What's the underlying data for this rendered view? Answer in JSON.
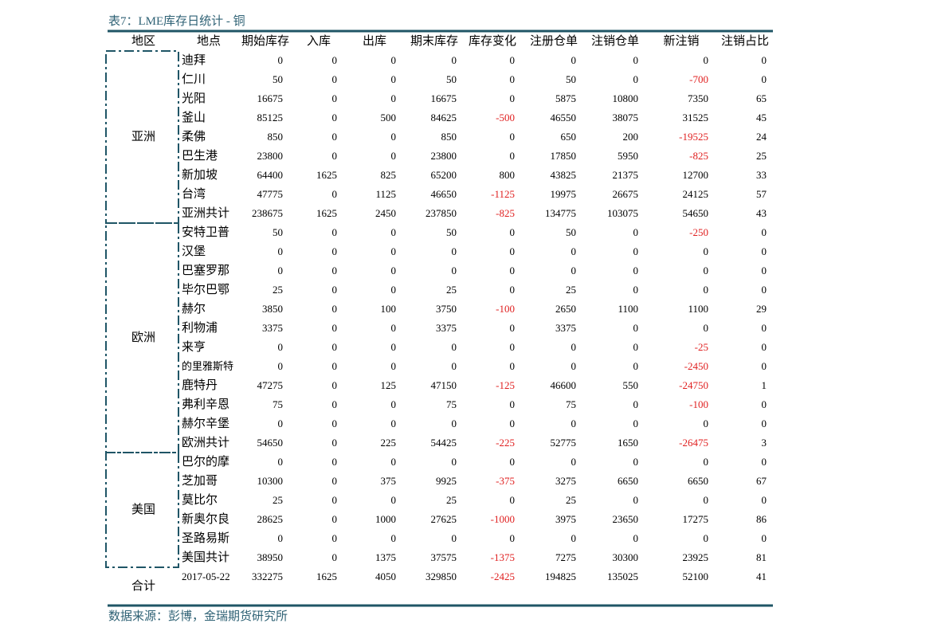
{
  "title": "表7：LME库存日统计 - 铜",
  "header": [
    "地区",
    "地点",
    "期始库存",
    "入库",
    "出库",
    "期末库存",
    "库存变化",
    "注册仓单",
    "注销仓单",
    "新注销",
    "注销占比"
  ],
  "groups": [
    {
      "region": "亚洲",
      "rows": [
        [
          "迪拜",
          0,
          0,
          0,
          0,
          0,
          0,
          0,
          0,
          0
        ],
        [
          "仁川",
          50,
          0,
          0,
          50,
          0,
          50,
          0,
          -700,
          0
        ],
        [
          "光阳",
          16675,
          0,
          0,
          16675,
          0,
          5875,
          10800,
          7350,
          65
        ],
        [
          "釜山",
          85125,
          0,
          500,
          84625,
          -500,
          46550,
          38075,
          31525,
          45
        ],
        [
          "柔佛",
          850,
          0,
          0,
          850,
          0,
          650,
          200,
          -19525,
          24
        ],
        [
          "巴生港",
          23800,
          0,
          0,
          23800,
          0,
          17850,
          5950,
          -825,
          25
        ],
        [
          "新加坡",
          64400,
          1625,
          825,
          65200,
          800,
          43825,
          21375,
          12700,
          33
        ],
        [
          "台湾",
          47775,
          0,
          1125,
          46650,
          -1125,
          19975,
          26675,
          24125,
          57
        ],
        [
          "亚洲共计",
          238675,
          1625,
          2450,
          237850,
          -825,
          134775,
          103075,
          54650,
          43
        ]
      ]
    },
    {
      "region": "欧洲",
      "rows": [
        [
          "安特卫普",
          50,
          0,
          0,
          50,
          0,
          50,
          0,
          -250,
          0
        ],
        [
          "汉堡",
          0,
          0,
          0,
          0,
          0,
          0,
          0,
          0,
          0
        ],
        [
          "巴塞罗那",
          0,
          0,
          0,
          0,
          0,
          0,
          0,
          0,
          0
        ],
        [
          "毕尔巴鄂",
          25,
          0,
          0,
          25,
          0,
          25,
          0,
          0,
          0
        ],
        [
          "赫尔",
          3850,
          0,
          100,
          3750,
          -100,
          2650,
          1100,
          1100,
          29
        ],
        [
          "利物浦",
          3375,
          0,
          0,
          3375,
          0,
          3375,
          0,
          0,
          0
        ],
        [
          "来亨",
          0,
          0,
          0,
          0,
          0,
          0,
          0,
          -25,
          0
        ],
        [
          "的里雅斯特",
          0,
          0,
          0,
          0,
          0,
          0,
          0,
          -2450,
          0
        ],
        [
          "鹿特丹",
          47275,
          0,
          125,
          47150,
          -125,
          46600,
          550,
          -24750,
          1
        ],
        [
          "弗利辛恩",
          75,
          0,
          0,
          75,
          0,
          75,
          0,
          -100,
          0
        ],
        [
          "赫尔辛堡",
          0,
          0,
          0,
          0,
          0,
          0,
          0,
          0,
          0
        ],
        [
          "欧洲共计",
          54650,
          0,
          225,
          54425,
          -225,
          52775,
          1650,
          -26475,
          3
        ]
      ]
    },
    {
      "region": "美国",
      "rows": [
        [
          "巴尔的摩",
          0,
          0,
          0,
          0,
          0,
          0,
          0,
          0,
          0
        ],
        [
          "芝加哥",
          10300,
          0,
          375,
          9925,
          -375,
          3275,
          6650,
          6650,
          67
        ],
        [
          "莫比尔",
          25,
          0,
          0,
          25,
          0,
          25,
          0,
          0,
          0
        ],
        [
          "新奥尔良",
          28625,
          0,
          1000,
          27625,
          -1000,
          3975,
          23650,
          17275,
          86
        ],
        [
          "圣路易斯",
          0,
          0,
          0,
          0,
          0,
          0,
          0,
          0,
          0
        ],
        [
          "美国共计",
          38950,
          0,
          1375,
          37575,
          -1375,
          7275,
          30300,
          23925,
          81
        ]
      ]
    }
  ],
  "total": {
    "region": "合计",
    "row": [
      "2017-05-22",
      332275,
      1625,
      4050,
      329850,
      -2425,
      194825,
      135025,
      52100,
      41
    ]
  },
  "source": "数据来源：彭博，金瑞期货研究所"
}
